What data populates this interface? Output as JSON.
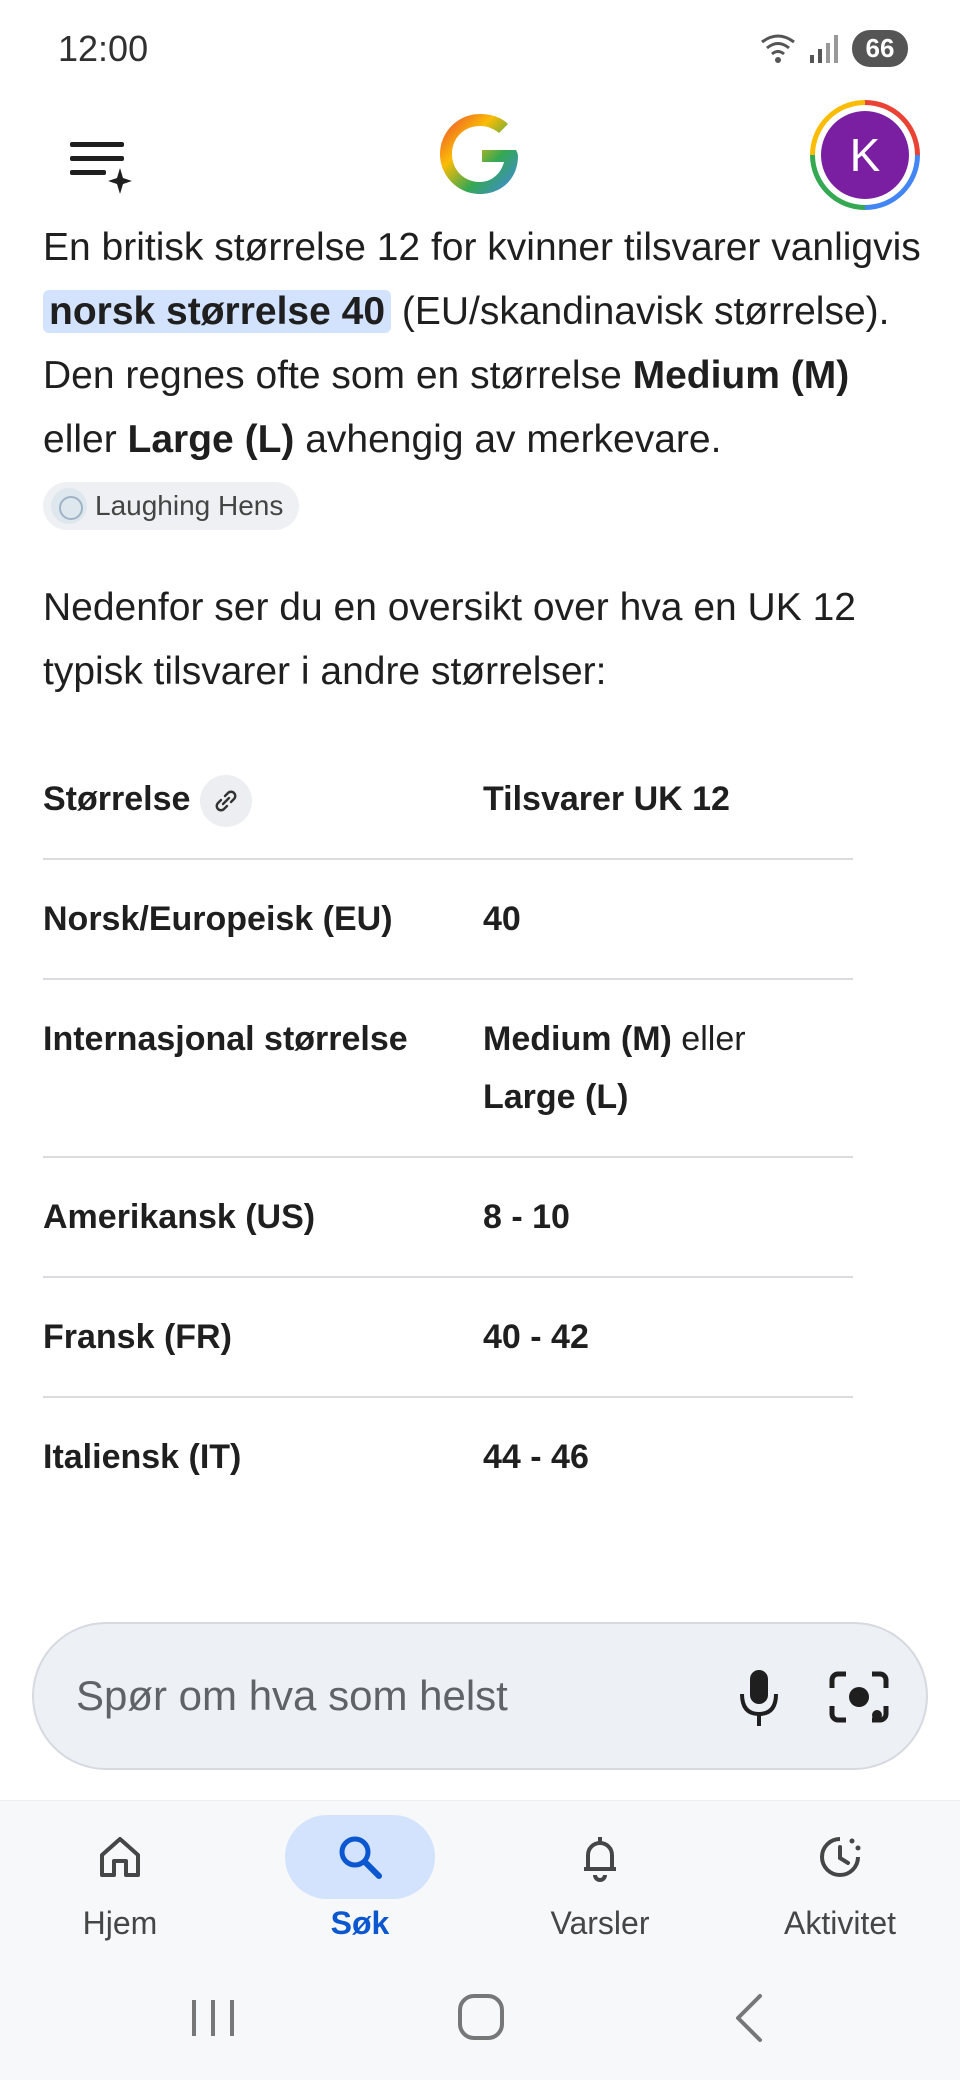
{
  "status_bar": {
    "time": "12:00",
    "battery": "66"
  },
  "app_bar": {
    "avatar_letter": "K"
  },
  "answer": {
    "p1_lead": "En britisk størrelse 12 for kvinner tilsvarer vanligvis ",
    "p1_highlight": "norsk størrelse 40",
    "p1_mid": " (EU/skandinavisk størrelse). Den regnes ofte som en størrelse ",
    "p1_bold1": "Medium (M)",
    "p1_or": " eller ",
    "p1_bold2": "Large (L)",
    "p1_tail": " avhengig av merkevare. ",
    "source_chip": "Laughing Hens",
    "p2": "Nedenfor ser du en oversikt over hva en UK 12 typisk tilsvarer i andre størrelser:"
  },
  "table": {
    "header": {
      "col1": "Størrelse",
      "col2": "Tilsvarer UK 12"
    },
    "rows": [
      {
        "label": "Norsk/Europeisk (EU)",
        "value": "40"
      },
      {
        "label": "Internasjonal størrelse",
        "value_bold1": "Medium (M)",
        "value_or": " eller ",
        "value_bold2": "Large (L)"
      },
      {
        "label": "Amerikansk (US)",
        "value": "8 - 10"
      },
      {
        "label": "Fransk (FR)",
        "value": "40 - 42"
      },
      {
        "label": "Italiensk (IT)",
        "value": "44 - 46"
      }
    ]
  },
  "search": {
    "placeholder": "Spør om hva som helst"
  },
  "bottom_nav": {
    "items": [
      {
        "label": "Hjem",
        "icon": "home-icon"
      },
      {
        "label": "Søk",
        "icon": "search-icon",
        "active": true
      },
      {
        "label": "Varsler",
        "icon": "bell-icon"
      },
      {
        "label": "Aktivitet",
        "icon": "activity-icon"
      }
    ]
  },
  "colors": {
    "accent": "#0b57d0",
    "highlight": "#d3e3fd",
    "avatar": "#7b1fa2"
  }
}
